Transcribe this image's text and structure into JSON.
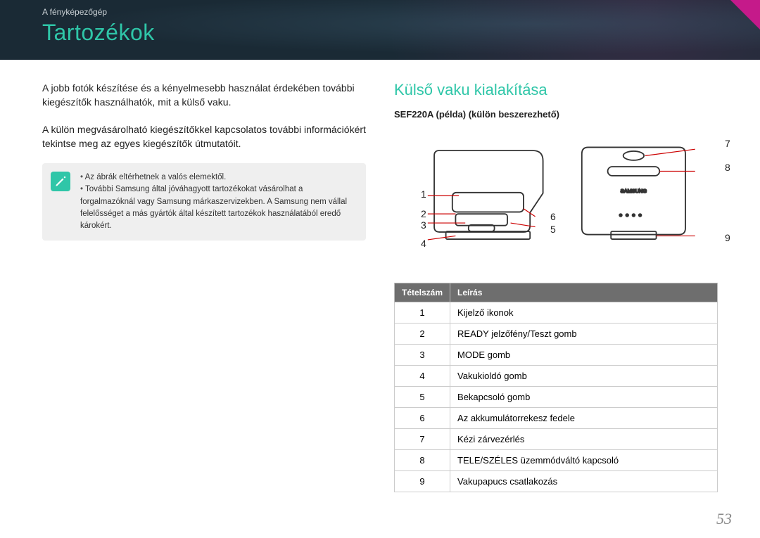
{
  "header": {
    "breadcrumb": "A fényképezőgép",
    "title": "Tartozékok"
  },
  "left": {
    "para1": "A jobb fotók készítése és a kényelmesebb használat érdekében további kiegészítők használhatók, mit a külső vaku.",
    "para2": "A külön megvásárolható kiegészítőkkel kapcsolatos további információkért tekintse meg az egyes kiegészítők útmutatóit.",
    "note": {
      "items": [
        "Az ábrák eltérhetnek a valós elemektől.",
        "További Samsung által jóváhagyott tartozékokat vásárolhat a forgalmazóknál vagy Samsung márkaszervizekben. A Samsung nem vállal felelősséget a más gyártók által készített tartozékok használatából eredő károkért."
      ]
    }
  },
  "right": {
    "section_title": "Külső vaku kialakítása",
    "sub_label": "SEF220A (példa) (külön beszerezhető)",
    "callouts": {
      "c1": "1",
      "c2": "2",
      "c3": "3",
      "c4": "4",
      "c5": "5",
      "c6": "6",
      "c7": "7",
      "c8": "8",
      "c9": "9"
    },
    "table": {
      "head_no": "Tételszám",
      "head_desc": "Leírás",
      "rows": [
        {
          "no": "1",
          "desc": "Kijelző ikonok"
        },
        {
          "no": "2",
          "desc": "READY jelzőfény/Teszt gomb"
        },
        {
          "no": "3",
          "desc": "MODE gomb"
        },
        {
          "no": "4",
          "desc": "Vakukioldó gomb"
        },
        {
          "no": "5",
          "desc": "Bekapcsoló gomb"
        },
        {
          "no": "6",
          "desc": "Az akkumulátorrekesz fedele"
        },
        {
          "no": "7",
          "desc": "Kézi zárvezérlés"
        },
        {
          "no": "8",
          "desc": "TELE/SZÉLES üzemmódváltó kapcsoló"
        },
        {
          "no": "9",
          "desc": "Vakupapucs csatlakozás"
        }
      ]
    }
  },
  "page_number": "53",
  "colors": {
    "accent": "#2fc6a8",
    "header_bg": "#1a2a35",
    "corner": "#c51a8a",
    "table_head": "#6e6e6e"
  }
}
